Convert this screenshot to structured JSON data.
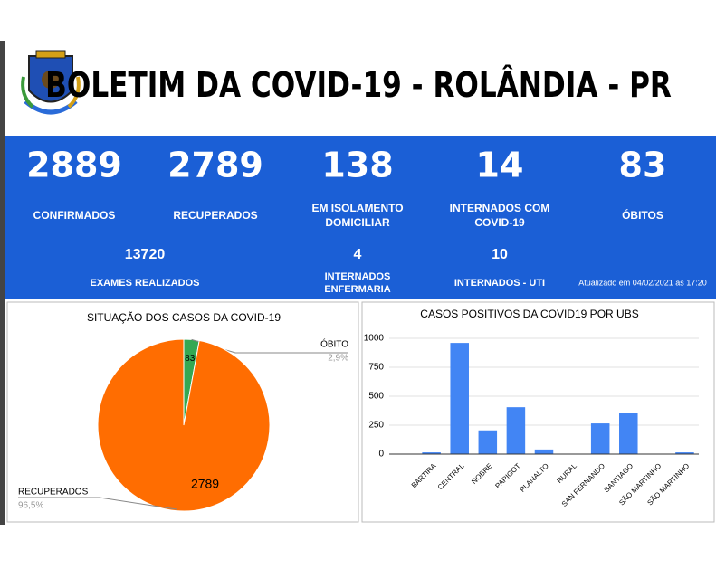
{
  "header": {
    "title": "BOLETIM DA COVID-19 - ROLÂNDIA - PR"
  },
  "stats": {
    "top": [
      {
        "value": 2889,
        "label": [
          "CONFIRMADOS"
        ]
      },
      {
        "value": 2789,
        "label": [
          "RECUPERADOS"
        ]
      },
      {
        "value": 138,
        "label": [
          "EM ISOLAMENTO",
          "DOMICILIAR"
        ]
      },
      {
        "value": 14,
        "label": [
          "INTERNADOS COM",
          "COVID-19"
        ]
      },
      {
        "value": 83,
        "label": [
          "ÓBITOS"
        ]
      }
    ],
    "bottom": [
      {
        "value": 13720,
        "label": [
          "EXAMES REALIZADOS"
        ]
      },
      {
        "value": 4,
        "label": [
          "INTERNADOS",
          "ENFERMARIA"
        ]
      },
      {
        "value": 10,
        "label": [
          "INTERNADOS - UTI"
        ]
      }
    ],
    "updated": "Atualizado em 04/02/2021 às 17:20"
  },
  "chart_data": [
    {
      "type": "pie",
      "title": "SITUAÇÃO DOS CASOS DA COVID-19",
      "series": [
        {
          "name": "ÓBITO",
          "value": 83,
          "percent_label": "2,9%",
          "color": "#34a853"
        },
        {
          "name": "RECUPERADOS",
          "value": 2789,
          "percent_label": "96,5%",
          "color": "#ff6d01"
        }
      ]
    },
    {
      "type": "bar",
      "title": "CASOS POSITIVOS DA COVID19 POR UBS",
      "color": "#4285f4",
      "categories": [
        null,
        "BARTIRA",
        "CENTRAL",
        "NOBRE",
        "PARIGOT",
        "PLANALTO",
        "RURAL",
        "SAN FERNANDO",
        "SANTIAGO",
        "SÃO MARTINHO",
        "SÃO MARTINHO"
      ],
      "values": [
        2,
        15,
        960,
        205,
        405,
        40,
        0,
        265,
        355,
        0,
        15
      ],
      "ylim": [
        0,
        1000
      ],
      "yticks": [
        0,
        250,
        500,
        750,
        1000
      ],
      "grid": true
    }
  ]
}
